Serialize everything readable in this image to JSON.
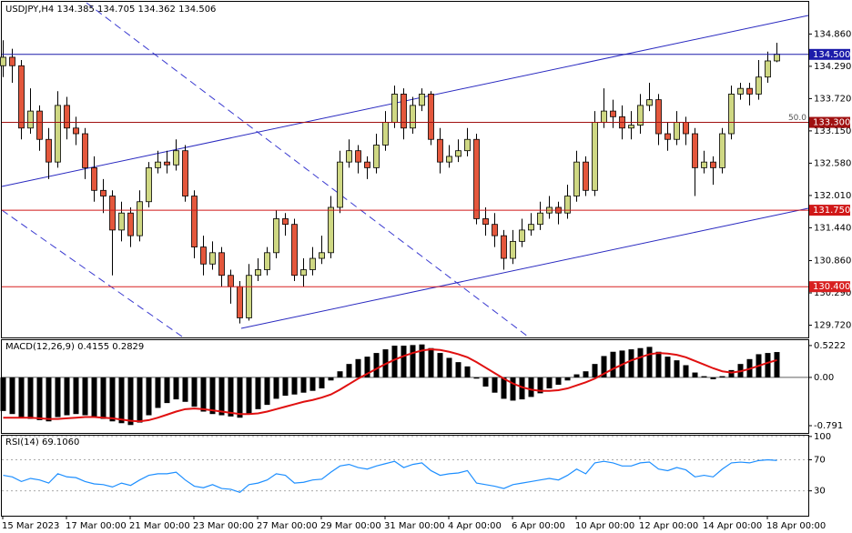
{
  "chart_data": {
    "type": "candlestick",
    "title": "USDJPY,H4  134.385 134.705 134.362 134.506",
    "categories": [
      "15 Mar 2023",
      null,
      null,
      null,
      null,
      null,
      null,
      "17 Mar 00:00",
      null,
      null,
      null,
      null,
      null,
      null,
      "21 Mar 00:00",
      null,
      null,
      null,
      null,
      null,
      null,
      "23 Mar 00:00",
      null,
      null,
      null,
      null,
      null,
      null,
      "27 Mar 00:00",
      null,
      null,
      null,
      null,
      null,
      null,
      "29 Mar 00:00",
      null,
      null,
      null,
      null,
      null,
      null,
      "31 Mar 00:00",
      null,
      null,
      null,
      null,
      null,
      null,
      "4 Apr 00:00",
      null,
      null,
      null,
      null,
      null,
      null,
      "6 Apr 00:00",
      null,
      null,
      null,
      null,
      null,
      null,
      "10 Apr 00:00",
      null,
      null,
      null,
      null,
      null,
      null,
      "12 Apr 00:00",
      null,
      null,
      null,
      null,
      null,
      null,
      "14 Apr 00:00",
      null,
      null,
      null,
      null,
      null,
      null,
      "18 Apr 00:00",
      null
    ],
    "open": [
      134.3,
      134.45,
      134.3,
      133.2,
      133.5,
      133.0,
      132.6,
      133.6,
      133.2,
      133.1,
      132.5,
      132.1,
      132.0,
      131.4,
      131.7,
      131.3,
      131.9,
      132.5,
      132.6,
      132.55,
      132.8,
      132.0,
      131.1,
      130.8,
      131.0,
      130.6,
      130.4,
      129.85,
      130.6,
      130.7,
      131.0,
      131.6,
      131.5,
      130.6,
      130.7,
      130.9,
      131.0,
      131.8,
      132.6,
      132.8,
      132.6,
      132.5,
      132.9,
      133.3,
      133.8,
      133.2,
      133.6,
      133.8,
      133.0,
      132.6,
      132.7,
      132.8,
      133.0,
      131.6,
      131.5,
      131.3,
      130.9,
      131.2,
      131.4,
      131.5,
      131.7,
      131.8,
      131.7,
      132.0,
      132.6,
      132.1,
      133.3,
      133.5,
      133.4,
      133.2,
      133.25,
      133.6,
      133.7,
      133.1,
      133.0,
      133.3,
      133.1,
      132.5,
      132.6,
      132.5,
      133.1,
      133.8,
      133.9,
      133.8,
      134.1,
      134.385
    ],
    "high": [
      134.75,
      134.6,
      134.4,
      133.9,
      133.6,
      133.2,
      133.85,
      133.75,
      133.4,
      133.2,
      132.7,
      132.3,
      132.1,
      131.9,
      131.8,
      132.1,
      132.6,
      132.8,
      132.8,
      133.0,
      132.9,
      132.1,
      131.3,
      131.2,
      131.1,
      130.7,
      130.5,
      130.8,
      130.9,
      131.1,
      131.75,
      131.7,
      131.6,
      130.9,
      131.1,
      131.3,
      132.0,
      132.8,
      133.0,
      132.9,
      132.7,
      133.1,
      133.5,
      133.95,
      133.9,
      133.75,
      133.9,
      133.85,
      133.2,
      132.9,
      133.0,
      133.2,
      133.1,
      131.8,
      131.7,
      131.4,
      131.4,
      131.6,
      131.7,
      131.9,
      132.0,
      131.9,
      132.2,
      132.8,
      132.7,
      133.5,
      133.9,
      133.7,
      133.6,
      133.5,
      133.8,
      134.0,
      133.8,
      133.3,
      133.5,
      133.4,
      133.2,
      132.8,
      132.7,
      133.2,
      133.95,
      134.0,
      134.0,
      134.4,
      134.55,
      134.705
    ],
    "low": [
      134.1,
      134.0,
      133.0,
      133.1,
      132.8,
      132.3,
      132.5,
      133.0,
      132.9,
      132.3,
      131.9,
      131.7,
      130.6,
      131.2,
      131.1,
      131.2,
      131.8,
      132.4,
      132.4,
      132.45,
      131.9,
      130.9,
      130.6,
      130.7,
      130.4,
      130.1,
      129.75,
      129.8,
      130.5,
      130.6,
      130.9,
      131.3,
      130.5,
      130.4,
      130.6,
      130.8,
      130.9,
      131.7,
      132.5,
      132.4,
      132.3,
      132.4,
      132.8,
      133.2,
      133.0,
      133.1,
      133.5,
      132.9,
      132.4,
      132.5,
      132.6,
      132.7,
      131.5,
      131.3,
      131.1,
      130.7,
      130.8,
      131.1,
      131.3,
      131.4,
      131.6,
      131.5,
      131.6,
      131.9,
      132.0,
      132.0,
      133.2,
      133.2,
      133.0,
      133.0,
      133.1,
      133.5,
      132.9,
      132.8,
      132.9,
      132.9,
      132.0,
      132.4,
      132.2,
      132.4,
      133.0,
      133.7,
      133.6,
      133.7,
      134.0,
      134.362
    ],
    "close": [
      134.45,
      134.3,
      133.2,
      133.5,
      133.0,
      132.6,
      133.6,
      133.2,
      133.1,
      132.5,
      132.1,
      132.0,
      131.4,
      131.7,
      131.3,
      131.9,
      132.5,
      132.6,
      132.55,
      132.8,
      132.0,
      131.1,
      130.8,
      131.0,
      130.6,
      130.4,
      129.85,
      130.6,
      130.7,
      131.0,
      131.6,
      131.5,
      130.6,
      130.7,
      130.9,
      131.0,
      131.8,
      132.6,
      132.8,
      132.6,
      132.5,
      132.9,
      133.3,
      133.8,
      133.2,
      133.6,
      133.8,
      133.0,
      132.6,
      132.7,
      132.8,
      133.0,
      131.6,
      131.5,
      131.3,
      130.9,
      131.2,
      131.4,
      131.5,
      131.7,
      131.8,
      131.7,
      132.0,
      132.6,
      132.1,
      133.3,
      133.5,
      133.4,
      133.2,
      133.25,
      133.6,
      133.7,
      133.1,
      133.0,
      133.3,
      133.1,
      132.5,
      132.6,
      132.5,
      133.1,
      133.8,
      133.9,
      133.8,
      134.1,
      134.385,
      134.506
    ],
    "up_color": "#cfd883",
    "down_color": "#e4573c",
    "ylim": [
      129.52,
      135.38
    ],
    "yticks": [
      {
        "value": 134.86,
        "label": "134.860"
      },
      {
        "value": 134.29,
        "label": "134.290"
      },
      {
        "value": 133.72,
        "label": "133.720"
      },
      {
        "value": 133.15,
        "label": "133.150"
      },
      {
        "value": 132.58,
        "label": "132.580"
      },
      {
        "value": 132.01,
        "label": "132.010"
      },
      {
        "value": 131.44,
        "label": "131.440"
      },
      {
        "value": 130.86,
        "label": "130.860"
      },
      {
        "value": 130.29,
        "label": "130.290"
      },
      {
        "value": 129.72,
        "label": "129.720"
      }
    ],
    "levels": [
      {
        "value": 134.5,
        "label": "134.500",
        "color": "#1c1caa"
      },
      {
        "value": 133.3,
        "label": "133.300",
        "color": "#a01010",
        "note": "50.0"
      },
      {
        "value": 131.75,
        "label": "131.750",
        "color": "#d01818"
      },
      {
        "value": 130.4,
        "label": "130.400",
        "color": "#d82020"
      }
    ],
    "macd": {
      "title": "MACD(12,26,9) 0.4155 0.2829",
      "histogram": [
        -0.55,
        -0.6,
        -0.66,
        -0.68,
        -0.7,
        -0.72,
        -0.65,
        -0.62,
        -0.6,
        -0.62,
        -0.65,
        -0.68,
        -0.72,
        -0.75,
        -0.78,
        -0.74,
        -0.62,
        -0.5,
        -0.42,
        -0.36,
        -0.4,
        -0.48,
        -0.56,
        -0.6,
        -0.62,
        -0.64,
        -0.66,
        -0.6,
        -0.52,
        -0.45,
        -0.35,
        -0.3,
        -0.28,
        -0.25,
        -0.22,
        -0.18,
        -0.05,
        0.1,
        0.22,
        0.3,
        0.34,
        0.4,
        0.46,
        0.52,
        0.52,
        0.53,
        0.54,
        0.48,
        0.4,
        0.32,
        0.25,
        0.18,
        -0.02,
        -0.15,
        -0.25,
        -0.35,
        -0.38,
        -0.36,
        -0.32,
        -0.26,
        -0.18,
        -0.12,
        -0.05,
        0.05,
        0.1,
        0.22,
        0.35,
        0.42,
        0.44,
        0.46,
        0.48,
        0.5,
        0.42,
        0.34,
        0.28,
        0.2,
        0.08,
        0.02,
        -0.03,
        0.02,
        0.12,
        0.22,
        0.3,
        0.38,
        0.4,
        0.4155
      ],
      "signal": [
        -0.66,
        -0.66,
        -0.66,
        -0.66,
        -0.67,
        -0.68,
        -0.68,
        -0.67,
        -0.66,
        -0.65,
        -0.65,
        -0.66,
        -0.67,
        -0.69,
        -0.71,
        -0.72,
        -0.7,
        -0.66,
        -0.61,
        -0.56,
        -0.52,
        -0.51,
        -0.52,
        -0.54,
        -0.56,
        -0.58,
        -0.6,
        -0.6,
        -0.59,
        -0.56,
        -0.52,
        -0.48,
        -0.44,
        -0.4,
        -0.37,
        -0.33,
        -0.28,
        -0.2,
        -0.11,
        -0.02,
        0.06,
        0.14,
        0.22,
        0.29,
        0.35,
        0.4,
        0.44,
        0.46,
        0.45,
        0.42,
        0.38,
        0.33,
        0.25,
        0.16,
        0.07,
        -0.02,
        -0.1,
        -0.16,
        -0.2,
        -0.22,
        -0.22,
        -0.21,
        -0.18,
        -0.13,
        -0.08,
        -0.02,
        0.06,
        0.14,
        0.21,
        0.28,
        0.33,
        0.38,
        0.4,
        0.39,
        0.37,
        0.33,
        0.27,
        0.21,
        0.15,
        0.1,
        0.08,
        0.1,
        0.14,
        0.19,
        0.24,
        0.2829
      ],
      "bar_color": "#000000",
      "signal_color": "#e01010",
      "ylim": [
        -0.91,
        0.61
      ],
      "yticks": [
        0.5222,
        {
          "value": 0,
          "label": "0.00"
        },
        -0.791
      ]
    },
    "rsi": {
      "title": "RSI(14) 69.1060",
      "values": [
        50,
        48,
        42,
        46,
        44,
        40,
        52,
        48,
        47,
        42,
        39,
        38,
        35,
        40,
        37,
        44,
        50,
        52,
        52,
        54,
        44,
        36,
        34,
        38,
        33,
        32,
        28,
        38,
        40,
        44,
        52,
        50,
        40,
        41,
        44,
        45,
        54,
        62,
        64,
        60,
        58,
        62,
        65,
        68,
        60,
        64,
        66,
        56,
        50,
        52,
        53,
        56,
        40,
        38,
        36,
        33,
        38,
        40,
        42,
        44,
        46,
        44,
        50,
        58,
        52,
        66,
        68,
        66,
        62,
        62,
        66,
        67,
        58,
        56,
        60,
        57,
        48,
        50,
        48,
        58,
        66,
        67,
        66,
        69,
        70,
        69.106
      ],
      "color": "#1e8fff",
      "ylim": [
        -2,
        101
      ],
      "yticks": [
        100,
        70,
        30
      ]
    }
  }
}
